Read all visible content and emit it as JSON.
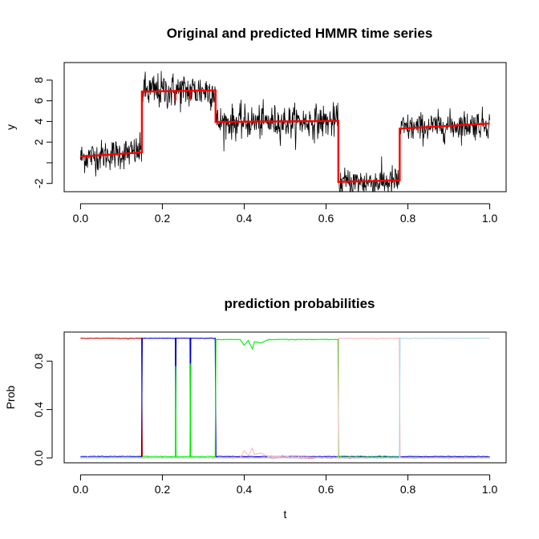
{
  "colors": {
    "background": "#ffffff",
    "axis": "#000000",
    "observed": "#000000",
    "predicted": "#ff0000",
    "regime1": "#cc0000",
    "regime2": "#0000cc",
    "regime3": "#00ee00",
    "regime4": "#ffb6c1",
    "regime5": "#add8e6"
  },
  "chart_data": [
    {
      "type": "line",
      "title": "Original and predicted HMMR time series",
      "xlabel": "",
      "ylabel": "y",
      "xlim": [
        0,
        1
      ],
      "ylim": [
        -3,
        9.5
      ],
      "x_ticks": [
        0,
        0.2,
        0.4,
        0.6,
        0.8,
        1
      ],
      "x_tick_labels": [
        "0.0",
        "0.2",
        "0.4",
        "0.6",
        "0.8",
        "1.0"
      ],
      "y_ticks": [
        -2,
        2,
        4,
        6,
        8
      ],
      "y_tick_labels": [
        "-2",
        "2",
        "4",
        "6",
        "8"
      ],
      "grid": false,
      "series": [
        {
          "color": "#000000",
          "kind": "noisy-observations",
          "segments": [
            {
              "x": [
                0.0,
                0.15
              ],
              "mean": [
                0.5,
                1.1
              ],
              "sd": 0.75
            },
            {
              "x": [
                0.15,
                0.33
              ],
              "mean": [
                6.9,
                7.0
              ],
              "sd": 0.9
            },
            {
              "x": [
                0.33,
                0.63
              ],
              "mean": [
                3.9,
                4.0
              ],
              "sd": 0.8
            },
            {
              "x": [
                0.63,
                0.78
              ],
              "mean": [
                -1.95,
                -1.8
              ],
              "sd": 0.75
            },
            {
              "x": [
                0.78,
                1.0
              ],
              "mean": [
                3.3,
                3.8
              ],
              "sd": 0.7
            }
          ]
        },
        {
          "color": "#ff0000",
          "kind": "predicted-mean",
          "segments": [
            {
              "x": [
                0.0,
                0.15
              ],
              "y": [
                0.6,
                1.0
              ]
            },
            {
              "x": [
                0.15,
                0.33
              ],
              "y": [
                6.9,
                7.0
              ]
            },
            {
              "x": [
                0.33,
                0.63
              ],
              "y": [
                3.95,
                4.05
              ]
            },
            {
              "x": [
                0.63,
                0.78
              ],
              "y": [
                -1.85,
                -1.7
              ]
            },
            {
              "x": [
                0.78,
                1.0
              ],
              "y": [
                3.3,
                3.8
              ]
            }
          ],
          "dips": [
            {
              "x": 0.232,
              "y": 6.0
            },
            {
              "x": 0.268,
              "y": 6.2
            }
          ]
        }
      ]
    },
    {
      "type": "line",
      "title": "prediction probabilities",
      "xlabel": "t",
      "ylabel": "Prob",
      "xlim": [
        0,
        1
      ],
      "ylim": [
        0,
        1
      ],
      "x_ticks": [
        0,
        0.2,
        0.4,
        0.6,
        0.8,
        1
      ],
      "x_tick_labels": [
        "0.0",
        "0.2",
        "0.4",
        "0.6",
        "0.8",
        "1.0"
      ],
      "y_ticks": [
        0,
        0.4,
        0.8
      ],
      "y_tick_labels": [
        "0.0",
        "0.4",
        "0.8"
      ],
      "grid": false,
      "series": [
        {
          "color": "#cc0000",
          "points": [
            [
              0.0,
              0.99
            ],
            [
              0.149,
              0.99
            ],
            [
              0.151,
              0.0
            ],
            [
              1.0,
              0.0
            ]
          ]
        },
        {
          "color": "#0000cc",
          "points": [
            [
              0.0,
              0.01
            ],
            [
              0.149,
              0.01
            ],
            [
              0.151,
              0.99
            ],
            [
              0.2315,
              0.99
            ],
            [
              0.2325,
              0.2
            ],
            [
              0.2335,
              0.99
            ],
            [
              0.2675,
              0.99
            ],
            [
              0.2685,
              0.2
            ],
            [
              0.2695,
              0.99
            ],
            [
              0.329,
              0.99
            ],
            [
              0.331,
              0.01
            ],
            [
              1.0,
              0.01
            ]
          ]
        },
        {
          "color": "#00ee00",
          "points": [
            [
              0.0,
              0.0
            ],
            [
              0.15,
              0.0
            ],
            [
              0.151,
              0.01
            ],
            [
              0.2315,
              0.01
            ],
            [
              0.2325,
              0.76
            ],
            [
              0.2335,
              0.01
            ],
            [
              0.2675,
              0.01
            ],
            [
              0.2685,
              0.78
            ],
            [
              0.2695,
              0.01
            ],
            [
              0.329,
              0.01
            ],
            [
              0.331,
              0.98
            ],
            [
              0.39,
              0.98
            ],
            [
              0.4,
              0.93
            ],
            [
              0.41,
              0.97
            ],
            [
              0.42,
              0.9
            ],
            [
              0.425,
              0.96
            ],
            [
              0.44,
              0.95
            ],
            [
              0.46,
              0.98
            ],
            [
              0.629,
              0.98
            ],
            [
              0.631,
              0.005
            ],
            [
              0.779,
              0.005
            ],
            [
              0.781,
              0.0
            ],
            [
              1.0,
              0.0
            ]
          ]
        },
        {
          "color": "#ffb6c1",
          "points": [
            [
              0.0,
              0.0
            ],
            [
              0.33,
              0.0
            ],
            [
              0.39,
              0.0
            ],
            [
              0.4,
              0.06
            ],
            [
              0.41,
              0.02
            ],
            [
              0.42,
              0.08
            ],
            [
              0.425,
              0.03
            ],
            [
              0.44,
              0.04
            ],
            [
              0.46,
              0.01
            ],
            [
              0.63,
              0.0
            ],
            [
              0.631,
              0.99
            ],
            [
              0.779,
              0.99
            ],
            [
              0.781,
              0.0
            ],
            [
              1.0,
              0.0
            ]
          ]
        },
        {
          "color": "#add8e6",
          "points": [
            [
              0.0,
              0.0
            ],
            [
              0.779,
              0.0
            ],
            [
              0.781,
              0.99
            ],
            [
              1.0,
              0.99
            ]
          ]
        }
      ]
    }
  ]
}
